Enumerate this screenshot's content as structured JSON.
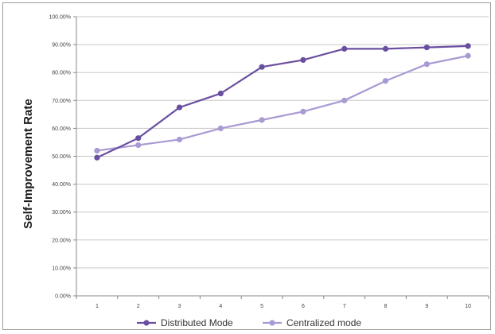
{
  "chart_data": {
    "type": "line",
    "title": "",
    "xlabel": "",
    "ylabel": "Self-Improvement Rate",
    "categories": [
      "1",
      "2",
      "3",
      "4",
      "5",
      "6",
      "7",
      "8",
      "9",
      "10"
    ],
    "ylim": [
      0,
      100
    ],
    "yticks": [
      "0.00%",
      "10.00%",
      "20.00%",
      "30.00%",
      "40.00%",
      "50.00%",
      "60.00%",
      "70.00%",
      "80.00%",
      "90.00%",
      "100.00%"
    ],
    "grid": true,
    "legend_position": "bottom",
    "series": [
      {
        "name": "Distributed Mode",
        "color": "#6a4fa0",
        "values": [
          49.5,
          56.5,
          67.5,
          72.5,
          82,
          84.5,
          88.5,
          88.5,
          89,
          89.5
        ]
      },
      {
        "name": "Centralized mode",
        "color": "#a99ad3",
        "values": [
          52,
          54,
          56,
          60,
          63,
          66,
          70,
          77,
          83,
          86
        ]
      }
    ]
  }
}
